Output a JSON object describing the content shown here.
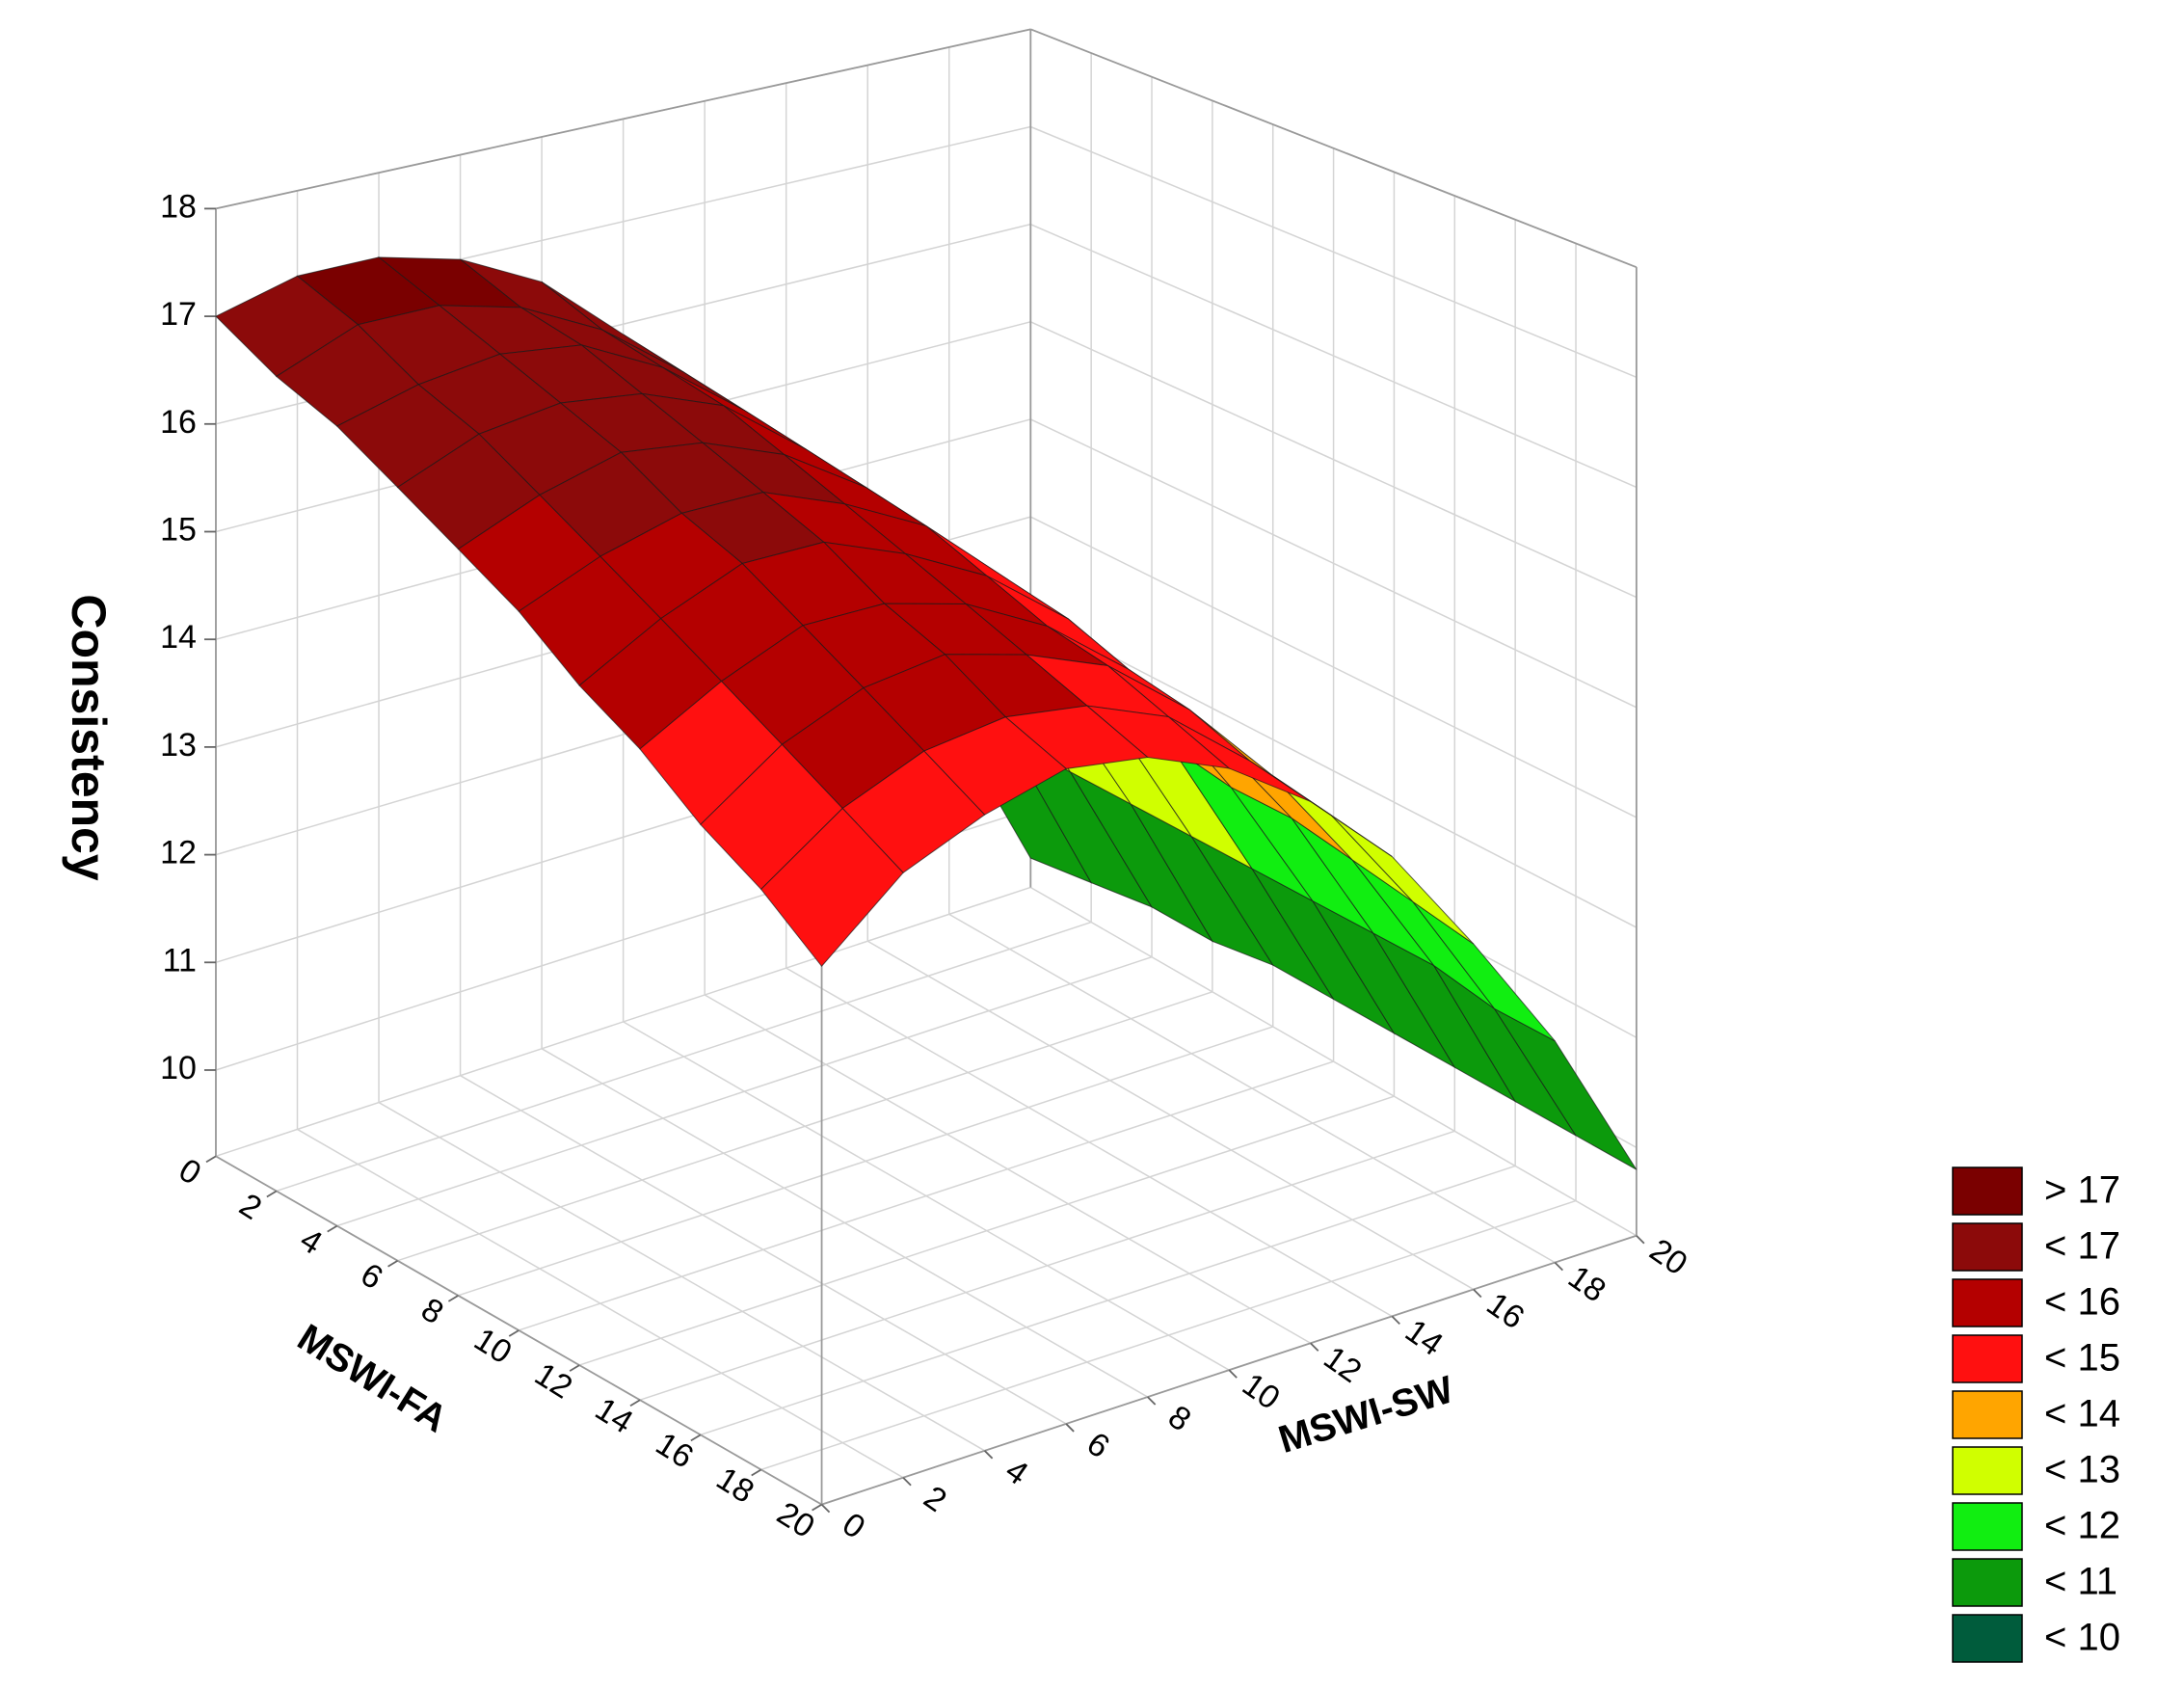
{
  "chart_data": {
    "type": "surface",
    "z_label": "Consistency",
    "x_label": "MSWI-FA",
    "y_label": "MSWI-SW",
    "x": [
      0,
      2,
      4,
      6,
      8,
      10,
      12,
      14,
      16,
      18,
      20
    ],
    "y": [
      0,
      2,
      4,
      6,
      8,
      10,
      12,
      14,
      16,
      18,
      20
    ],
    "z": [
      [
        17.0,
        17.2,
        17.2,
        17.0,
        16.6,
        15.9,
        15.1,
        14.0,
        12.7,
        11.2,
        9.5
      ],
      [
        16.7,
        17.0,
        17.0,
        16.8,
        16.4,
        15.8,
        15.0,
        14.0,
        12.7,
        11.3,
        9.6
      ],
      [
        16.5,
        16.7,
        16.8,
        16.7,
        16.3,
        15.7,
        15.0,
        14.0,
        12.7,
        11.3,
        9.7
      ],
      [
        16.2,
        16.5,
        16.6,
        16.5,
        16.2,
        15.6,
        14.9,
        13.9,
        12.7,
        11.3,
        9.7
      ],
      [
        15.9,
        16.2,
        16.4,
        16.3,
        16.0,
        15.5,
        14.8,
        13.8,
        12.7,
        11.3,
        9.8
      ],
      [
        15.6,
        15.9,
        16.1,
        16.1,
        15.8,
        15.4,
        14.7,
        13.8,
        12.7,
        11.3,
        9.8
      ],
      [
        15.2,
        15.6,
        15.9,
        15.9,
        15.6,
        15.2,
        14.6,
        13.7,
        12.6,
        11.3,
        9.8
      ],
      [
        14.9,
        15.3,
        15.6,
        15.6,
        15.4,
        15.0,
        14.4,
        13.6,
        12.6,
        11.3,
        9.8
      ],
      [
        14.5,
        15.0,
        15.3,
        15.4,
        15.2,
        14.9,
        14.3,
        13.5,
        12.5,
        11.3,
        9.8
      ],
      [
        14.2,
        14.7,
        15.0,
        15.1,
        15.0,
        14.7,
        14.1,
        13.4,
        12.4,
        11.2,
        9.8
      ],
      [
        13.8,
        14.4,
        14.7,
        14.9,
        14.8,
        14.5,
        14.0,
        13.3,
        12.3,
        11.2,
        9.8
      ]
    ],
    "xlim": [
      0,
      20
    ],
    "ylim": [
      0,
      20
    ],
    "zlim": [
      9.2,
      18
    ],
    "xticks": [
      0,
      2,
      4,
      6,
      8,
      10,
      12,
      14,
      16,
      18,
      20
    ],
    "yticks": [
      0,
      2,
      4,
      6,
      8,
      10,
      12,
      14,
      16,
      18,
      20
    ],
    "zticks": [
      10,
      11,
      12,
      13,
      14,
      15,
      16,
      17,
      18
    ],
    "grid": true,
    "legend": [
      {
        "label": "> 17",
        "value": 17,
        "color": "#7a0000"
      },
      {
        "label": "< 17",
        "value": 17,
        "color": "#8c0a0a"
      },
      {
        "label": "< 16",
        "value": 16,
        "color": "#b40000"
      },
      {
        "label": "< 15",
        "value": 15,
        "color": "#ff1010"
      },
      {
        "label": "< 14",
        "value": 14,
        "color": "#ffa500"
      },
      {
        "label": "< 13",
        "value": 13,
        "color": "#d0ff00"
      },
      {
        "label": "< 12",
        "value": 12,
        "color": "#11ee11"
      },
      {
        "label": "< 11",
        "value": 11,
        "color": "#0c9a0c"
      },
      {
        "label": "< 10",
        "value": 10,
        "color": "#005c3c"
      }
    ]
  }
}
